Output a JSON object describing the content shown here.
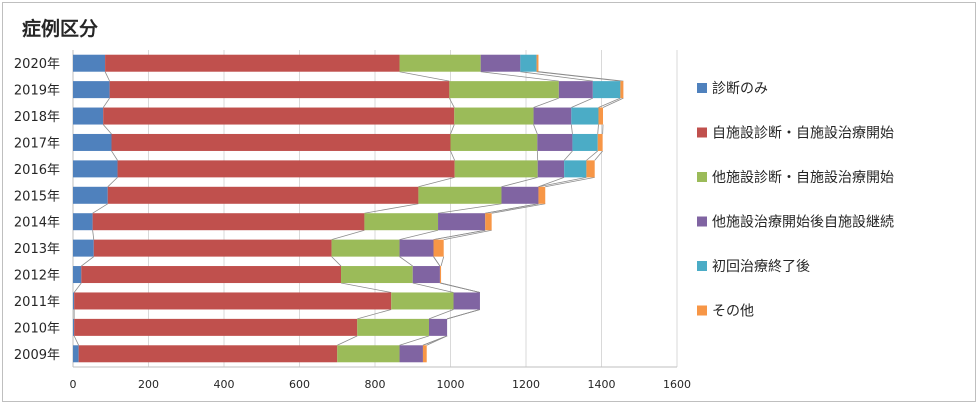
{
  "chart_data": {
    "type": "bar",
    "orientation": "horizontal",
    "stacked": true,
    "title": "症例区分",
    "categories": [
      "2020年",
      "2019年",
      "2018年",
      "2017年",
      "2016年",
      "2015年",
      "2014年",
      "2013年",
      "2012年",
      "2011年",
      "2010年",
      "2009年"
    ],
    "series": [
      {
        "name": "診断のみ",
        "color": "#4f81bd",
        "values": [
          85,
          97,
          80,
          102,
          118,
          92,
          52,
          55,
          22,
          3,
          3,
          15
        ]
      },
      {
        "name": "自施設診断・自施設治療開始",
        "color": "#c0504d",
        "values": [
          780,
          900,
          930,
          898,
          893,
          823,
          720,
          630,
          688,
          840,
          750,
          685
        ]
      },
      {
        "name": "他施設診断・自施設治療開始",
        "color": "#9bbb59",
        "values": [
          215,
          290,
          210,
          230,
          220,
          220,
          195,
          180,
          190,
          165,
          190,
          165
        ]
      },
      {
        "name": "他施設治療開始後自施設継続",
        "color": "#8064a2",
        "values": [
          105,
          90,
          100,
          93,
          70,
          98,
          125,
          90,
          72,
          70,
          48,
          62
        ]
      },
      {
        "name": "初回治療終了後",
        "color": "#4bacc6",
        "values": [
          43,
          73,
          72,
          67,
          59,
          0,
          0,
          0,
          0,
          0,
          0,
          0
        ]
      },
      {
        "name": "その他",
        "color": "#f79646",
        "values": [
          5,
          8,
          12,
          13,
          22,
          18,
          17,
          27,
          3,
          0,
          0,
          10
        ]
      }
    ],
    "xlim": [
      0,
      1600
    ],
    "xticks": [
      "0",
      "200",
      "400",
      "600",
      "800",
      "1000",
      "1200",
      "1400",
      "1600"
    ],
    "series_lines": true,
    "grid": true,
    "legend_position": "right"
  }
}
